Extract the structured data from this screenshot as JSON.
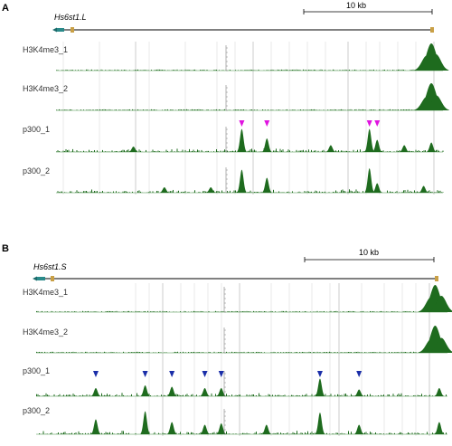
{
  "colors": {
    "signal": "#1e6b1e",
    "baseline": "#3c8a3c",
    "gridline": "#c8c8c8",
    "exon": "#c9a046",
    "utr": "#2a8a8a",
    "arrow_magenta": "#e014e0",
    "arrow_blue": "#1a2ea8"
  },
  "panels": [
    {
      "letter": "A",
      "scale_label": "10 kb",
      "gene_name": "Hs6st1.L",
      "tracks": [
        {
          "label": "H3K4me3_1",
          "peaks": [
            [
              0.97,
              1.0
            ],
            [
              0.958,
              0.55
            ],
            [
              0.982,
              0.6
            ]
          ]
        },
        {
          "label": "H3K4me3_2",
          "peaks": [
            [
              0.97,
              1.0
            ],
            [
              0.958,
              0.5
            ],
            [
              0.983,
              0.55
            ]
          ]
        },
        {
          "label": "p300_1",
          "peaks": [
            [
              0.48,
              0.85
            ],
            [
              0.545,
              0.5
            ],
            [
              0.71,
              0.25
            ],
            [
              0.81,
              0.85
            ],
            [
              0.83,
              0.45
            ],
            [
              0.2,
              0.2
            ],
            [
              0.9,
              0.25
            ],
            [
              0.97,
              0.35
            ]
          ]
        },
        {
          "label": "p300_2",
          "peaks": [
            [
              0.48,
              0.85
            ],
            [
              0.545,
              0.55
            ],
            [
              0.81,
              0.9
            ],
            [
              0.83,
              0.35
            ],
            [
              0.28,
              0.2
            ],
            [
              0.4,
              0.2
            ],
            [
              0.95,
              0.25
            ]
          ]
        }
      ],
      "arrows": [
        0.48,
        0.545,
        0.81,
        0.83
      ]
    },
    {
      "letter": "B",
      "scale_label": "10 kb",
      "gene_name": "Hs6st1.S",
      "tracks": [
        {
          "label": "H3K4me3_1",
          "peaks": [
            [
              0.97,
              1.0
            ],
            [
              0.96,
              0.55
            ],
            [
              0.985,
              0.6
            ]
          ]
        },
        {
          "label": "H3K4me3_2",
          "peaks": [
            [
              0.97,
              1.0
            ],
            [
              0.96,
              0.5
            ],
            [
              0.985,
              0.55
            ]
          ]
        },
        {
          "label": "p300_1",
          "peaks": [
            [
              0.145,
              0.3
            ],
            [
              0.265,
              0.4
            ],
            [
              0.33,
              0.35
            ],
            [
              0.41,
              0.3
            ],
            [
              0.45,
              0.3
            ],
            [
              0.69,
              0.65
            ],
            [
              0.785,
              0.25
            ],
            [
              0.98,
              0.3
            ]
          ]
        },
        {
          "label": "p300_2",
          "peaks": [
            [
              0.145,
              0.55
            ],
            [
              0.265,
              0.85
            ],
            [
              0.33,
              0.45
            ],
            [
              0.41,
              0.35
            ],
            [
              0.45,
              0.4
            ],
            [
              0.69,
              0.8
            ],
            [
              0.785,
              0.35
            ],
            [
              0.98,
              0.45
            ],
            [
              0.56,
              0.35
            ]
          ]
        }
      ],
      "arrows": [
        0.145,
        0.265,
        0.33,
        0.41,
        0.45,
        0.69,
        0.785
      ]
    }
  ]
}
